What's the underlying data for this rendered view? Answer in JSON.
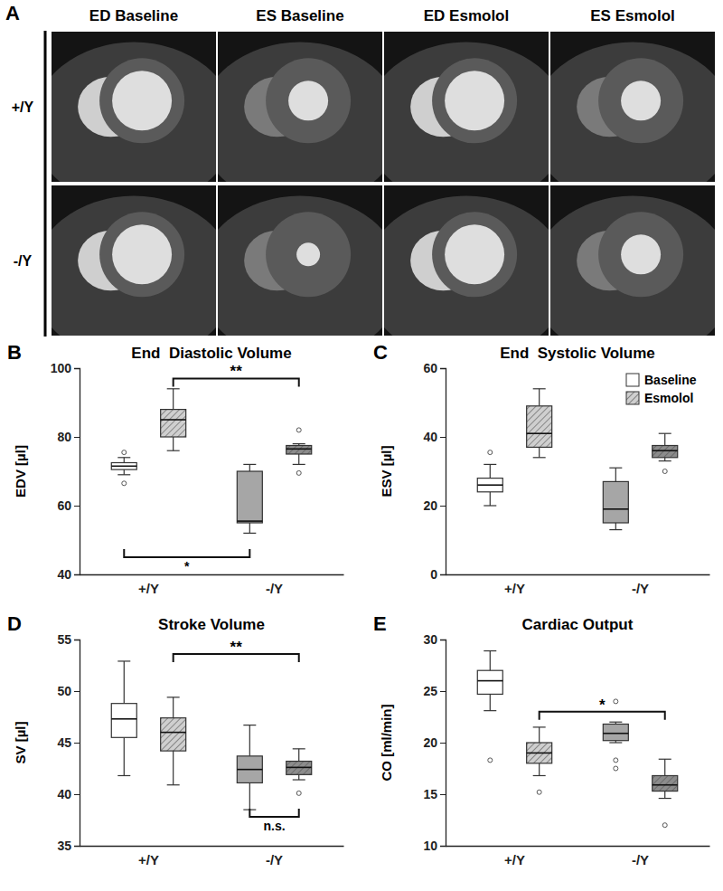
{
  "panel_a": {
    "label": "A",
    "columns": [
      "ED Baseline",
      "ES Baseline",
      "ED Esmolol",
      "ES Esmolol"
    ],
    "rows": [
      "+/Y",
      "-/Y"
    ]
  },
  "chart_data": [
    {
      "panel": "B",
      "type": "box",
      "title": "End  Diastolic Volume",
      "ylabel": "EDV [µl]",
      "categories": [
        "+/Y",
        "-/Y"
      ],
      "ylim": [
        40,
        100
      ],
      "yticks": [
        40,
        60,
        80,
        100
      ],
      "series": [
        {
          "name": "Baseline",
          "colors": [
            "#ffffff",
            "#a6a6a6"
          ],
          "values": [
            {
              "min": 69,
              "q1": 70.5,
              "median": 71.5,
              "q3": 72.5,
              "max": 74,
              "outliers": [
                75.5,
                66.5
              ]
            },
            {
              "min": 52,
              "q1": 55,
              "median": 55.5,
              "q3": 70,
              "max": 72,
              "outliers": []
            }
          ]
        },
        {
          "name": "Esmolol",
          "colors": [
            "#cfcfcf",
            "#8c8c8c"
          ],
          "values": [
            {
              "min": 76,
              "q1": 80,
              "median": 85,
              "q3": 88,
              "max": 94,
              "outliers": []
            },
            {
              "min": 72,
              "q1": 75,
              "median": 76.5,
              "q3": 77.5,
              "max": 78,
              "outliers": [
                82,
                69.5
              ]
            }
          ]
        }
      ],
      "annotations": [
        {
          "text": "**",
          "from": [
            "+/Y",
            "Esmolol"
          ],
          "to": [
            "-/Y",
            "Esmolol"
          ],
          "y": 97
        },
        {
          "text": "*",
          "from": [
            "+/Y",
            "Baseline"
          ],
          "to": [
            "-/Y",
            "Baseline"
          ],
          "y": 45
        }
      ]
    },
    {
      "panel": "C",
      "type": "box",
      "title": "End  Systolic Volume",
      "ylabel": "ESV [µl]",
      "categories": [
        "+/Y",
        "-/Y"
      ],
      "ylim": [
        0,
        60
      ],
      "yticks": [
        0,
        20,
        40,
        60
      ],
      "legend": "upper right",
      "series": [
        {
          "name": "Baseline",
          "colors": [
            "#ffffff",
            "#a6a6a6"
          ],
          "values": [
            {
              "min": 20,
              "q1": 24,
              "median": 26,
              "q3": 28,
              "max": 32,
              "outliers": [
                35.5
              ]
            },
            {
              "min": 13,
              "q1": 15,
              "median": 19,
              "q3": 27,
              "max": 31,
              "outliers": []
            }
          ]
        },
        {
          "name": "Esmolol",
          "colors": [
            "#cfcfcf",
            "#8c8c8c"
          ],
          "values": [
            {
              "min": 34,
              "q1": 37,
              "median": 41,
              "q3": 49,
              "max": 54,
              "outliers": []
            },
            {
              "min": 33,
              "q1": 34,
              "median": 36,
              "q3": 37.5,
              "max": 41,
              "outliers": [
                30
              ]
            }
          ]
        }
      ]
    },
    {
      "panel": "D",
      "type": "box",
      "title": "Stroke Volume",
      "ylabel": "SV [µl]",
      "categories": [
        "+/Y",
        "-/Y"
      ],
      "ylim": [
        35,
        55
      ],
      "yticks": [
        35,
        40,
        45,
        50,
        55
      ],
      "series": [
        {
          "name": "Baseline",
          "colors": [
            "#ffffff",
            "#a6a6a6"
          ],
          "values": [
            {
              "min": 41.8,
              "q1": 45.5,
              "median": 47.3,
              "q3": 48.8,
              "max": 52.9,
              "outliers": []
            },
            {
              "min": 38.5,
              "q1": 41.1,
              "median": 42.4,
              "q3": 43.7,
              "max": 46.7,
              "outliers": []
            }
          ]
        },
        {
          "name": "Esmolol",
          "colors": [
            "#cfcfcf",
            "#8c8c8c"
          ],
          "values": [
            {
              "min": 40.9,
              "q1": 44.2,
              "median": 46,
              "q3": 47.4,
              "max": 49.4,
              "outliers": []
            },
            {
              "min": 41.4,
              "q1": 41.9,
              "median": 42.6,
              "q3": 43.2,
              "max": 44.4,
              "outliers": [
                40.1
              ]
            }
          ]
        }
      ],
      "annotations": [
        {
          "text": "**",
          "from": [
            "+/Y",
            "Esmolol"
          ],
          "to": [
            "-/Y",
            "Esmolol"
          ],
          "y": 53.6
        },
        {
          "text": "n.s.",
          "from": [
            "-/Y",
            "Baseline"
          ],
          "to": [
            "-/Y",
            "Esmolol"
          ],
          "y": 37.8
        }
      ]
    },
    {
      "panel": "E",
      "type": "box",
      "title": "Cardiac Output",
      "ylabel": "CO [ml/min]",
      "categories": [
        "+/Y",
        "-/Y"
      ],
      "ylim": [
        10,
        30
      ],
      "yticks": [
        10,
        15,
        20,
        25,
        30
      ],
      "series": [
        {
          "name": "Baseline",
          "colors": [
            "#ffffff",
            "#a6a6a6"
          ],
          "values": [
            {
              "min": 23.1,
              "q1": 24.7,
              "median": 26,
              "q3": 27,
              "max": 28.9,
              "outliers": [
                18.3
              ]
            },
            {
              "min": 20,
              "q1": 20.2,
              "median": 20.9,
              "q3": 21.8,
              "max": 22,
              "outliers": [
                24,
                18.3,
                17.5
              ]
            }
          ]
        },
        {
          "name": "Esmolol",
          "colors": [
            "#cfcfcf",
            "#8c8c8c"
          ],
          "values": [
            {
              "min": 16.8,
              "q1": 18,
              "median": 19,
              "q3": 20,
              "max": 21.5,
              "outliers": [
                15.2
              ]
            },
            {
              "min": 14.6,
              "q1": 15.3,
              "median": 15.9,
              "q3": 16.8,
              "max": 18.4,
              "outliers": [
                12
              ]
            }
          ]
        }
      ],
      "annotations": [
        {
          "text": "*",
          "from": [
            "+/Y",
            "Esmolol"
          ],
          "to": [
            "-/Y",
            "Esmolol"
          ],
          "y": 23
        }
      ]
    }
  ]
}
